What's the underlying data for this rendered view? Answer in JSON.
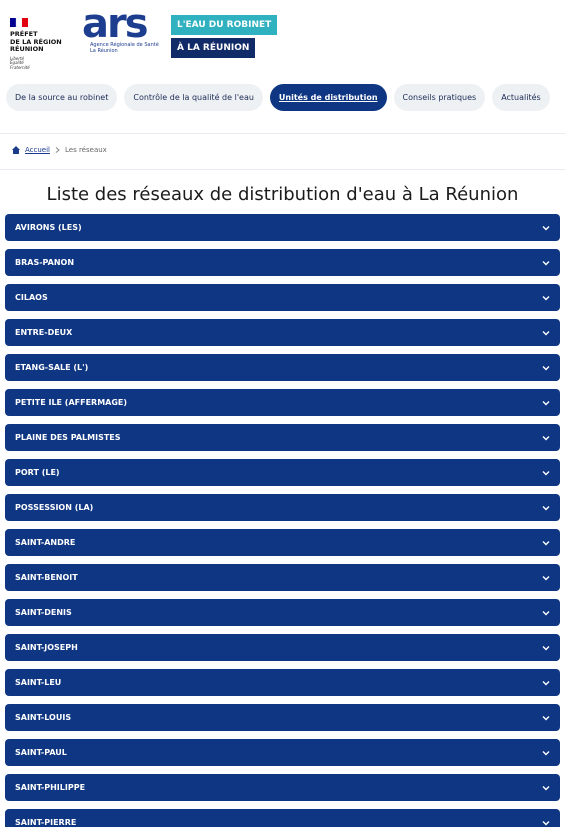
{
  "header": {
    "prefet": {
      "lines": [
        "PRÉFET",
        "DE LA RÉGION",
        "RÉUNION"
      ],
      "motto": [
        "Liberté",
        "Égalité",
        "Fraternité"
      ]
    },
    "ars": {
      "logo": "ars",
      "agency": "Agence Régionale de Santé",
      "region": "La Réunion"
    },
    "badge": [
      "L'EAU DU ROBINET",
      "À LA RÉUNION"
    ]
  },
  "nav": [
    "De la source au robinet",
    "Contrôle de la qualité de l'eau",
    "Unités de distribution",
    "Conseils pratiques",
    "Actualités"
  ],
  "nav_active": 2,
  "breadcrumb": [
    "Accueil",
    "Les réseaux"
  ],
  "title": "Liste des réseaux de distribution d'eau à La Réunion",
  "networks": [
    "AVIRONS (LES)",
    "BRAS-PANON",
    "CILAOS",
    "ENTRE-DEUX",
    "ETANG-SALE (L')",
    "PETITE ILE (AFFERMAGE)",
    "PLAINE DES PALMISTES",
    "PORT (LE)",
    "POSSESSION (LA)",
    "SAINT-ANDRE",
    "SAINT-BENOIT",
    "SAINT-DENIS",
    "SAINT-JOSEPH",
    "SAINT-LEU",
    "SAINT-LOUIS",
    "SAINT-PAUL",
    "SAINT-PHILIPPE",
    "SAINT-PIERRE"
  ]
}
